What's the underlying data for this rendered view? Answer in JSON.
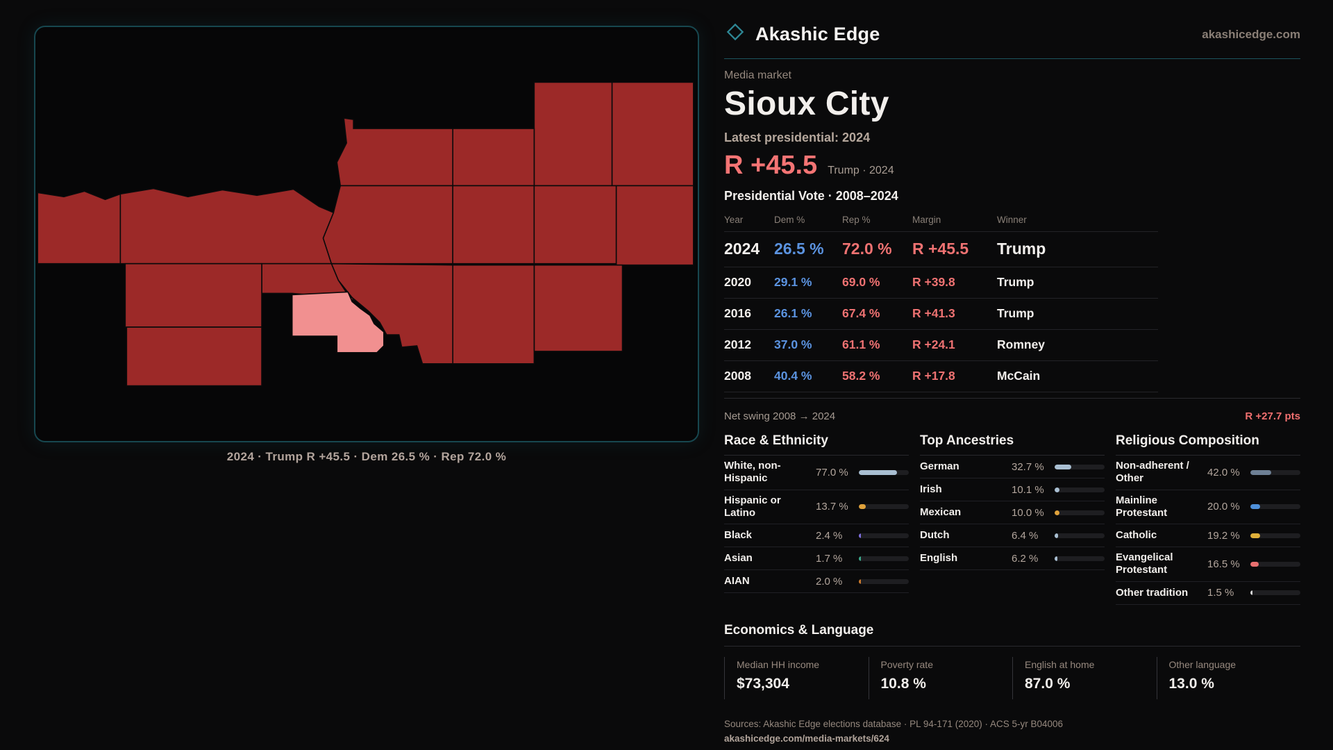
{
  "brand": {
    "name": "Akashic Edge",
    "site": "akashicedge.com"
  },
  "profile": {
    "kicker": "Media market",
    "title": "Sioux City",
    "latest_label": "Latest presidential: 2024",
    "margin_value": "R +45.5",
    "margin_context": "Trump · 2024"
  },
  "map": {
    "caption": "2024 · Trump R +45.5 · Dem 26.5 % · Rep 72.0 %"
  },
  "vote_table": {
    "title": "Presidential Vote · 2008–2024",
    "columns": [
      "Year",
      "Dem %",
      "Rep %",
      "Margin",
      "Winner"
    ],
    "rows": [
      {
        "year": "2024",
        "dem": "26.5 %",
        "rep": "72.0 %",
        "margin": "R +45.5",
        "winner": "Trump"
      },
      {
        "year": "2020",
        "dem": "29.1 %",
        "rep": "69.0 %",
        "margin": "R +39.8",
        "winner": "Trump"
      },
      {
        "year": "2016",
        "dem": "26.1 %",
        "rep": "67.4 %",
        "margin": "R +41.3",
        "winner": "Trump"
      },
      {
        "year": "2012",
        "dem": "37.0 %",
        "rep": "61.1 %",
        "margin": "R +24.1",
        "winner": "Romney"
      },
      {
        "year": "2008",
        "dem": "40.4 %",
        "rep": "58.2 %",
        "margin": "R +17.8",
        "winner": "McCain"
      }
    ],
    "net_swing_label": "Net swing 2008 → 2024",
    "net_swing_value": "R +27.7 pts"
  },
  "race": {
    "title": "Race & Ethnicity",
    "rows": [
      {
        "label": "White, non-Hispanic",
        "value": "77.0 %",
        "pct": 77.0,
        "color": "#a9bfd2"
      },
      {
        "label": "Hispanic or Latino",
        "value": "13.7 %",
        "pct": 13.7,
        "color": "#e0a23b"
      },
      {
        "label": "Black",
        "value": "2.4 %",
        "pct": 2.4,
        "color": "#7f6fe0"
      },
      {
        "label": "Asian",
        "value": "1.7 %",
        "pct": 1.7,
        "color": "#3cab8c"
      },
      {
        "label": "AIAN",
        "value": "2.0 %",
        "pct": 2.0,
        "color": "#cd7a2c"
      }
    ]
  },
  "ancestries": {
    "title": "Top Ancestries",
    "rows": [
      {
        "label": "German",
        "value": "32.7 %",
        "pct": 32.7,
        "color": "#a9bfd2"
      },
      {
        "label": "Irish",
        "value": "10.1 %",
        "pct": 10.1,
        "color": "#a9bfd2"
      },
      {
        "label": "Mexican",
        "value": "10.0 %",
        "pct": 10.0,
        "color": "#e0a23b"
      },
      {
        "label": "Dutch",
        "value": "6.4 %",
        "pct": 6.4,
        "color": "#a9bfd2"
      },
      {
        "label": "English",
        "value": "6.2 %",
        "pct": 6.2,
        "color": "#a9bfd2"
      }
    ]
  },
  "religion": {
    "title": "Religious Composition",
    "rows": [
      {
        "label": "Non-adherent / Other",
        "value": "42.0 %",
        "pct": 42.0,
        "color": "#6e8095"
      },
      {
        "label": "Mainline Protestant",
        "value": "20.0 %",
        "pct": 20.0,
        "color": "#4e90da"
      },
      {
        "label": "Catholic",
        "value": "19.2 %",
        "pct": 19.2,
        "color": "#dfaf3a"
      },
      {
        "label": "Evangelical Protestant",
        "value": "16.5 %",
        "pct": 16.5,
        "color": "#e87070"
      },
      {
        "label": "Other tradition",
        "value": "1.5 %",
        "pct": 1.5,
        "color": "#d9d9d9"
      }
    ]
  },
  "economics": {
    "title": "Economics & Language",
    "stats": [
      {
        "label": "Median HH income",
        "value": "$73,304"
      },
      {
        "label": "Poverty rate",
        "value": "10.8 %"
      },
      {
        "label": "English at home",
        "value": "87.0 %"
      },
      {
        "label": "Other language",
        "value": "13.0 %"
      }
    ]
  },
  "sources": {
    "line1": "Sources: Akashic Edge elections database · PL 94-171 (2020) · ACS 5-yr B04006",
    "line2": "akashicedge.com/media-markets/624"
  },
  "colors": {
    "county_red": "#9c2928",
    "county_highlight": "#f19090",
    "dem_blue": "#5b93e0",
    "rep_red": "#ef7272",
    "accent_teal": "#1d545e"
  }
}
